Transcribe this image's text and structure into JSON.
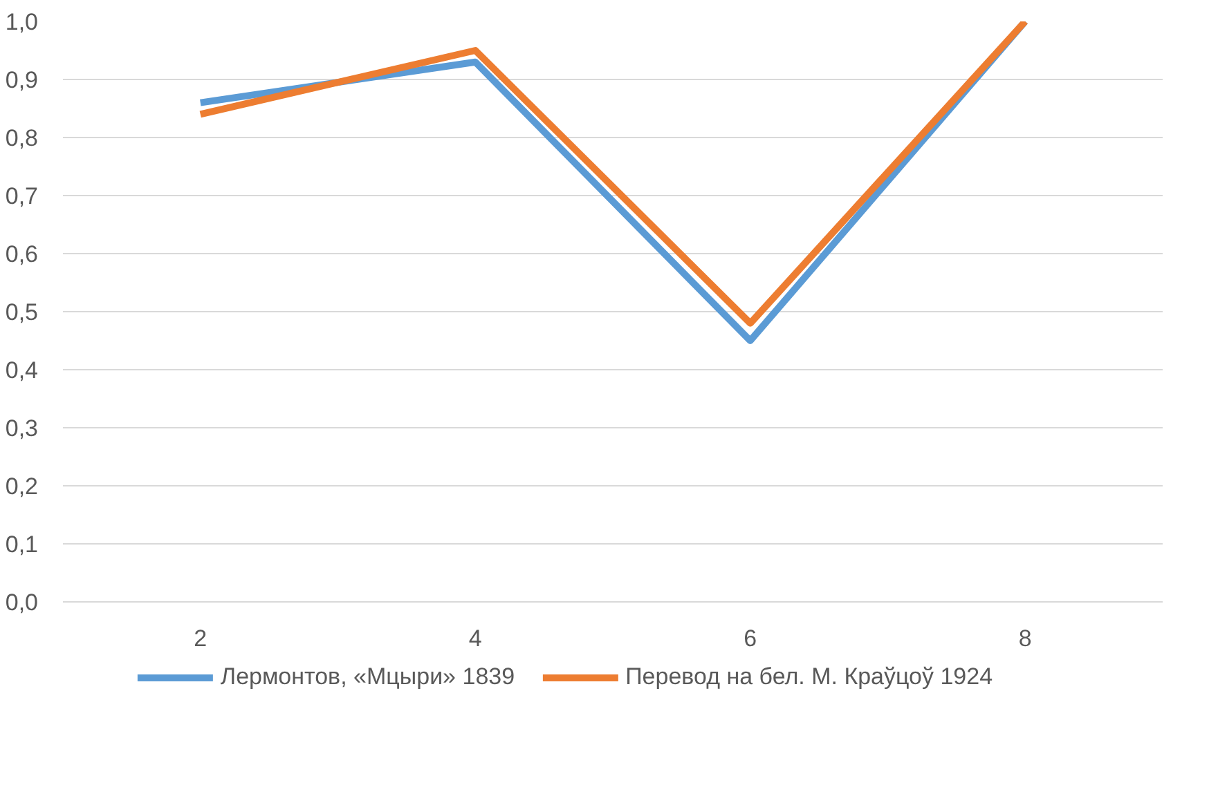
{
  "chart_data": {
    "type": "line",
    "categories": [
      "2",
      "4",
      "6",
      "8"
    ],
    "series": [
      {
        "name": "Лермонтов, «Мцыри» 1839",
        "color": "#5b9bd5",
        "values": [
          0.86,
          0.93,
          0.45,
          1.0
        ]
      },
      {
        "name": "Перевод на бел. М. Краўцоў 1924",
        "color": "#ed7d31",
        "values": [
          0.84,
          0.95,
          0.48,
          1.0
        ]
      }
    ],
    "ylim": [
      0,
      1
    ],
    "yticks": [
      {
        "value": 0,
        "label": "0,0"
      },
      {
        "value": 0.1,
        "label": "0,1"
      },
      {
        "value": 0.2,
        "label": "0,2"
      },
      {
        "value": 0.3,
        "label": "0,3"
      },
      {
        "value": 0.4,
        "label": "0,4"
      },
      {
        "value": 0.5,
        "label": "0,5"
      },
      {
        "value": 0.6,
        "label": "0,6"
      },
      {
        "value": 0.7,
        "label": "0,7"
      },
      {
        "value": 0.8,
        "label": "0,8"
      },
      {
        "value": 0.9,
        "label": "0,9"
      },
      {
        "value": 1.0,
        "label": "1,0"
      }
    ],
    "grid": "y",
    "legend": "bottom",
    "marker": "none",
    "line_style": "solid"
  }
}
